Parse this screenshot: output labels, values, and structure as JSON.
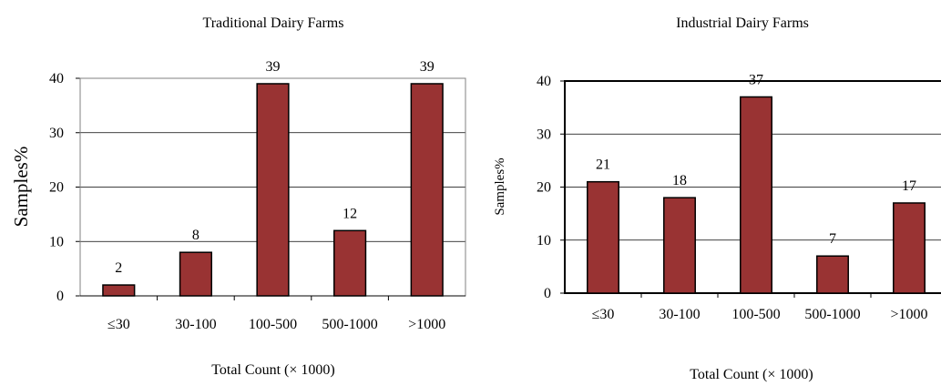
{
  "chart_data": [
    {
      "type": "bar",
      "title": "Traditional Dairy Farms",
      "xlabel": "Total Count (× 1000)",
      "ylabel": "Samples%",
      "categories": [
        "≤30",
        "30-100",
        "100-500",
        "500-1000",
        ">1000"
      ],
      "values": [
        2,
        8,
        39,
        12,
        39
      ],
      "ylim": [
        0,
        40
      ],
      "yticks": [
        0,
        10,
        20,
        30,
        40
      ],
      "grid": true,
      "bar_color": "#993333"
    },
    {
      "type": "bar",
      "title": "Industrial Dairy Farms",
      "xlabel": "Total Count (× 1000)",
      "ylabel": "Samples%",
      "categories": [
        "≤30",
        "30-100",
        "100-500",
        "500-1000",
        ">1000"
      ],
      "values": [
        21,
        18,
        37,
        7,
        17
      ],
      "ylim": [
        0,
        40
      ],
      "yticks": [
        0,
        10,
        20,
        30,
        40
      ],
      "grid": true,
      "bar_color": "#993333"
    }
  ]
}
